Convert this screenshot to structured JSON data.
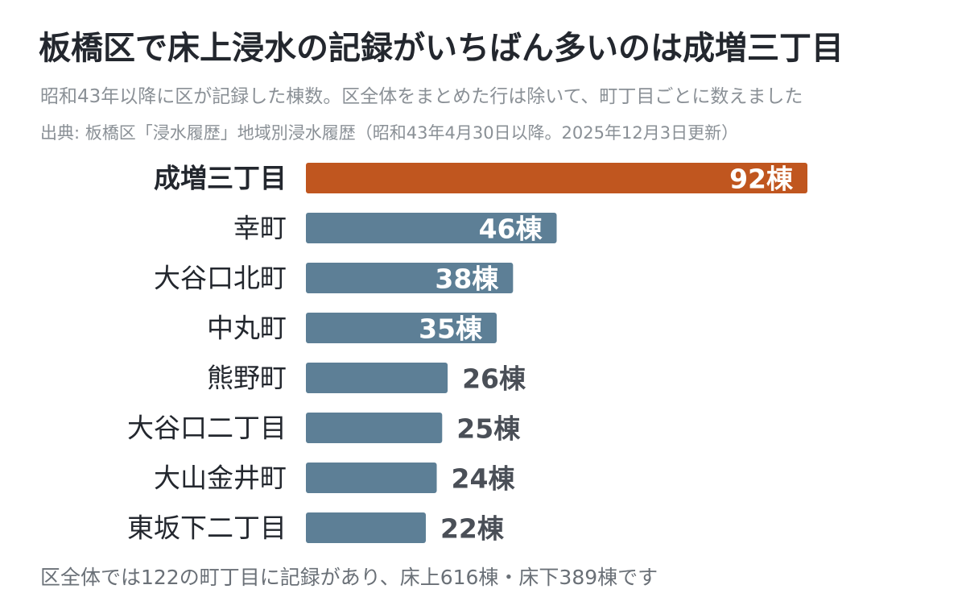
{
  "title": "板橋区で床上浸水の記録がいちばん多いのは成増三丁目",
  "subtitle": "昭和43年以降に区が記録した棟数。区全体をまとめた行は除いて、町丁目ごとに数えました",
  "source": "出典: 板橋区「浸水履歴」地域別浸水履歴（昭和43年4月30日以降。2025年12月3日更新）",
  "footnote": "区全体では122の町丁目に記録があり、床上616棟・床下389棟です",
  "colors": {
    "highlight": "#c0561f",
    "bar": "#5d7f96",
    "label_inside": "#ffffff",
    "label_outside": "#4a4f57",
    "category": "#23272e"
  },
  "chart_data": {
    "type": "bar",
    "orientation": "horizontal",
    "categories": [
      "成増三丁目",
      "幸町",
      "大谷口北町",
      "中丸町",
      "熊野町",
      "大谷口二丁目",
      "大山金井町",
      "東坂下二丁目"
    ],
    "values": [
      92,
      46,
      38,
      35,
      26,
      25,
      24,
      22
    ],
    "value_labels": [
      "92棟",
      "46棟",
      "38棟",
      "35棟",
      "26棟",
      "25棟",
      "24棟",
      "22棟"
    ],
    "highlight_index": 0,
    "xlim": [
      0,
      92
    ],
    "grid": false,
    "legend": "none"
  }
}
